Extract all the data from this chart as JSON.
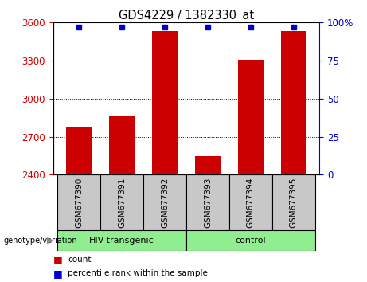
{
  "title": "GDS4229 / 1382330_at",
  "categories": [
    "GSM677390",
    "GSM677391",
    "GSM677392",
    "GSM677393",
    "GSM677394",
    "GSM677395"
  ],
  "bar_values": [
    2780,
    2870,
    3530,
    2550,
    3310,
    3530
  ],
  "bar_color": "#cc0000",
  "percentile_values": [
    97,
    97,
    97,
    97,
    97,
    97
  ],
  "percentile_color": "#0000cc",
  "ymin": 2400,
  "ymax": 3600,
  "y_ticks": [
    2400,
    2700,
    3000,
    3300,
    3600
  ],
  "y2min": 0,
  "y2max": 100,
  "y2_ticks": [
    0,
    25,
    50,
    75,
    100
  ],
  "group1_label": "HIV-transgenic",
  "group2_label": "control",
  "group1_indices": [
    0,
    1,
    2
  ],
  "group2_indices": [
    3,
    4,
    5
  ],
  "group_label_text": "genotype/variation",
  "group_bg_color": "#90ee90",
  "tick_label_bg": "#c8c8c8",
  "legend_count_label": "count",
  "legend_pct_label": "percentile rank within the sample",
  "y_tick_color": "#cc0000",
  "y2_tick_color": "#0000cc",
  "plot_bg": "#ffffff"
}
